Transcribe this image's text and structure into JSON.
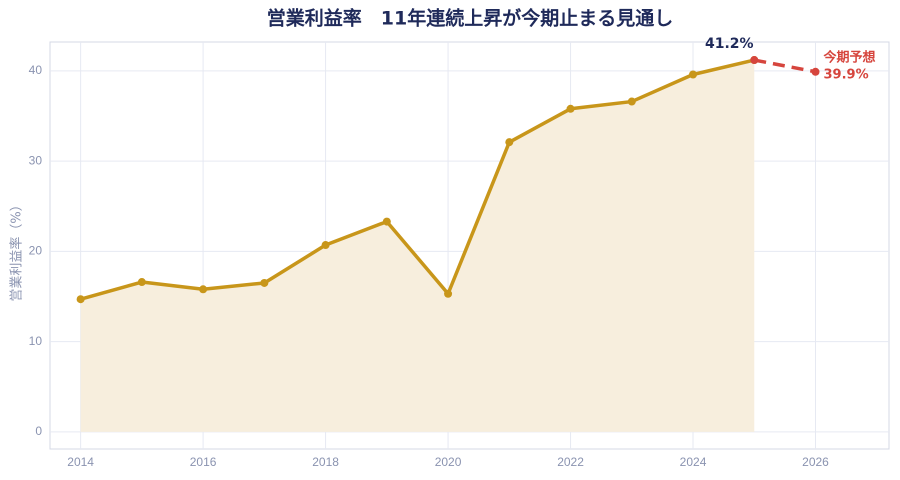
{
  "chart_data": {
    "type": "line",
    "title": "営業利益率　11年連続上昇が今期止まる見通し",
    "y_label": "営業利益率（%）",
    "x": [
      2014,
      2015,
      2016,
      2017,
      2018,
      2019,
      2020,
      2021,
      2022,
      2023,
      2024,
      2025,
      2026
    ],
    "series": [
      {
        "name": null,
        "color": "#c8961a",
        "fill": "#f7eedd",
        "dashed": false,
        "values": [
          14.7,
          16.6,
          15.8,
          16.5,
          20.7,
          23.3,
          15.3,
          32.1,
          35.8,
          36.6,
          39.6,
          41.2,
          null
        ],
        "value_labels": [
          null,
          null,
          null,
          null,
          null,
          null,
          null,
          null,
          null,
          null,
          null,
          "41.2%",
          null
        ]
      },
      {
        "name": "今期予想",
        "color": "#d6453d",
        "fill": null,
        "dashed": true,
        "values": [
          null,
          null,
          null,
          null,
          null,
          null,
          null,
          null,
          null,
          null,
          null,
          41.2,
          39.9
        ],
        "value_labels": [
          null,
          null,
          null,
          null,
          null,
          null,
          null,
          null,
          null,
          null,
          null,
          null,
          "39.9%"
        ]
      }
    ],
    "xlim": [
      2013.5,
      2027.2
    ],
    "ylim": [
      -1.9,
      43.2
    ],
    "xticks": [
      2014,
      2016,
      2018,
      2020,
      2022,
      2024,
      2026
    ],
    "yticks": [
      0,
      10,
      20,
      30,
      40
    ],
    "grid": true
  }
}
